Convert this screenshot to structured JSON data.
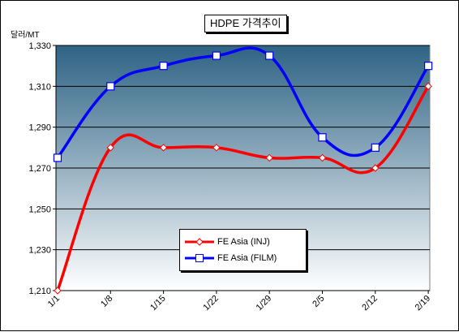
{
  "chart_data": {
    "type": "line",
    "title": "HDPE 가격추이",
    "ylabel": "달러/MT",
    "categories": [
      "1/1",
      "1/8",
      "1/15",
      "1/22",
      "1/29",
      "2/5",
      "2/12",
      "2/19"
    ],
    "ylim": [
      1210,
      1330
    ],
    "yticks": [
      1210,
      1230,
      1250,
      1270,
      1290,
      1310,
      1330
    ],
    "ytick_labels": [
      "1,210",
      "1,230",
      "1,250",
      "1,270",
      "1,290",
      "1,310",
      "1,330"
    ],
    "grid": "horizontal",
    "legend_position": "bottom-center",
    "series": [
      {
        "name": "FE Asia (INJ)",
        "color": "#ff0000",
        "marker": "diamond",
        "values": [
          1210,
          1280,
          1280,
          1280,
          1275,
          1275,
          1270,
          1310
        ]
      },
      {
        "name": "FE Asia (FILM)",
        "color": "#0000ff",
        "marker": "square",
        "values": [
          1275,
          1310,
          1320,
          1325,
          1325,
          1285,
          1280,
          1320
        ]
      }
    ],
    "plot_background": {
      "top": "#2e6384",
      "bottom": "#ffffff"
    }
  }
}
